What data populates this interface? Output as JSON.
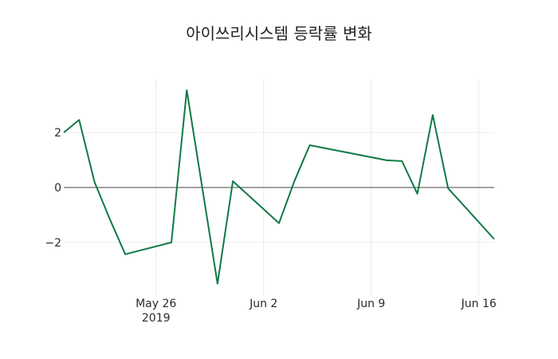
{
  "chart_data": {
    "type": "line",
    "title": "아이쓰리시스템 등락률 변화",
    "xlabel": "",
    "ylabel": "",
    "x": [
      "2019-05-20",
      "2019-05-21",
      "2019-05-22",
      "2019-05-23",
      "2019-05-24",
      "2019-05-27",
      "2019-05-28",
      "2019-05-30",
      "2019-05-31",
      "2019-06-03",
      "2019-06-04",
      "2019-06-05",
      "2019-06-10",
      "2019-06-11",
      "2019-06-12",
      "2019-06-13",
      "2019-06-14",
      "2019-06-17"
    ],
    "series": [
      {
        "name": "등락률",
        "color": "#0f7a45",
        "values": [
          2.0,
          2.46,
          0.2,
          -1.16,
          -2.43,
          -2.0,
          3.54,
          -3.5,
          0.23,
          -1.3,
          0.23,
          1.54,
          0.99,
          0.96,
          -0.23,
          2.64,
          -0.03,
          -1.88
        ]
      }
    ],
    "xlim": [
      "2019-05-20",
      "2019-06-17"
    ],
    "ylim": [
      -3.92,
      3.92
    ],
    "x_ticks": [
      {
        "date": "2019-05-26",
        "label": "May 26",
        "sublabel": "2019"
      },
      {
        "date": "2019-06-02",
        "label": "Jun 2"
      },
      {
        "date": "2019-06-09",
        "label": "Jun 9"
      },
      {
        "date": "2019-06-16",
        "label": "Jun 16"
      }
    ],
    "y_ticks": [
      {
        "value": 2,
        "label": "2"
      },
      {
        "value": 0,
        "label": "0"
      },
      {
        "value": -2,
        "label": "−2"
      }
    ],
    "grid": true,
    "zero_line": true
  }
}
